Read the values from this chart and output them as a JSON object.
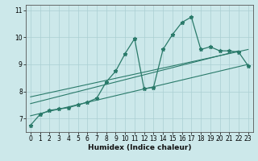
{
  "xlabel": "Humidex (Indice chaleur)",
  "background_color": "#cce8ea",
  "grid_color": "#aacfd2",
  "line_color": "#2a7a6a",
  "xlim": [
    -0.5,
    23.5
  ],
  "ylim": [
    6.5,
    11.2
  ],
  "xticks": [
    0,
    1,
    2,
    3,
    4,
    5,
    6,
    7,
    8,
    9,
    10,
    11,
    12,
    13,
    14,
    15,
    16,
    17,
    18,
    19,
    20,
    21,
    22,
    23
  ],
  "yticks": [
    7,
    8,
    9,
    10,
    11
  ],
  "main_x": [
    0,
    1,
    2,
    3,
    4,
    5,
    6,
    7,
    8,
    9,
    10,
    11,
    12,
    13,
    14,
    15,
    16,
    17,
    18,
    19,
    20,
    21,
    22,
    23
  ],
  "main_y": [
    6.75,
    7.15,
    7.3,
    7.35,
    7.4,
    7.5,
    7.6,
    7.75,
    8.35,
    8.75,
    9.4,
    9.95,
    8.1,
    8.15,
    9.55,
    10.1,
    10.55,
    10.75,
    9.55,
    9.65,
    9.5,
    9.5,
    9.45,
    8.95
  ],
  "line1_x": [
    0,
    23
  ],
  "line1_y": [
    7.1,
    9.0
  ],
  "line2_x": [
    0,
    22
  ],
  "line2_y": [
    7.55,
    9.5
  ],
  "line3_x": [
    0,
    23
  ],
  "line3_y": [
    7.8,
    9.55
  ]
}
